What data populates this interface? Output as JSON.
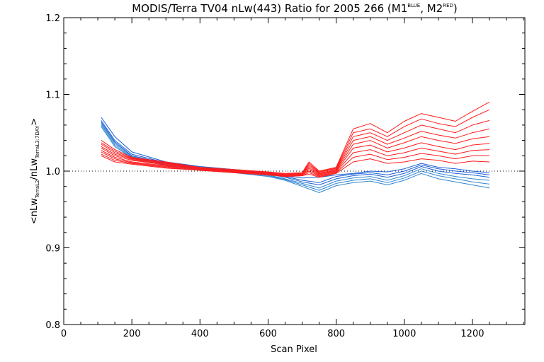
{
  "chart_data": {
    "type": "line",
    "title": {
      "main": "MODIS/Terra TV04 nLw(443) Ratio for 2005 266 (M1",
      "sup1": "BLUE",
      "mid": ", M2",
      "sup2": "RED",
      "end": ")"
    },
    "xlabel": "Scan Pixel",
    "ylabel": {
      "open": "<nLw",
      "sub1": "TerraL2",
      "slash": "/nLw",
      "sub2": "TerraL3:7DAY",
      "close": ">"
    },
    "xlim": [
      0,
      1354
    ],
    "ylim": [
      0.8,
      1.2
    ],
    "x_ticks": [
      "0",
      "200",
      "400",
      "600",
      "800",
      "1000",
      "1200"
    ],
    "y_ticks": [
      "0.8",
      "0.9",
      "1.0",
      "1.1",
      "1.2"
    ],
    "reference_line": {
      "y": 1.0,
      "style": "dotted"
    },
    "grid": false,
    "legend": "none",
    "colors": {
      "blue_series": "#1a5fd6",
      "blue_light": "#2f86d0",
      "red_series": "#ff1a1a"
    },
    "series": [
      {
        "group": "blue",
        "x": [
          110,
          150,
          200,
          300,
          400,
          500,
          600,
          650,
          700,
          750,
          800,
          850,
          900,
          950,
          1000,
          1050,
          1100,
          1150,
          1200,
          1250
        ],
        "y": [
          1.07,
          1.045,
          1.025,
          1.012,
          1.006,
          1.002,
          0.998,
          0.994,
          0.991,
          0.992,
          0.995,
          0.997,
          1.0,
          0.999,
          1.003,
          1.01,
          1.005,
          1.003,
          1.0,
          0.998
        ]
      },
      {
        "group": "blue",
        "x": [
          110,
          150,
          200,
          300,
          400,
          500,
          600,
          650,
          700,
          750,
          800,
          850,
          900,
          950,
          1000,
          1050,
          1100,
          1150,
          1200,
          1250
        ],
        "y": [
          1.066,
          1.04,
          1.022,
          1.011,
          1.005,
          1.001,
          0.997,
          0.993,
          0.988,
          0.985,
          0.993,
          0.996,
          0.998,
          0.995,
          1.0,
          1.008,
          1.003,
          1.0,
          0.998,
          0.995
        ]
      },
      {
        "group": "blue",
        "x": [
          110,
          150,
          200,
          300,
          400,
          500,
          600,
          650,
          700,
          750,
          800,
          850,
          900,
          950,
          1000,
          1050,
          1100,
          1150,
          1200,
          1250
        ],
        "y": [
          1.064,
          1.038,
          1.02,
          1.01,
          1.004,
          1.0,
          0.996,
          0.992,
          0.986,
          0.982,
          0.99,
          0.994,
          0.996,
          0.992,
          0.997,
          1.006,
          1.0,
          0.997,
          0.995,
          0.992
        ]
      },
      {
        "group": "blue",
        "x": [
          110,
          150,
          200,
          300,
          400,
          500,
          600,
          650,
          700,
          750,
          800,
          850,
          900,
          950,
          1000,
          1050,
          1100,
          1150,
          1200,
          1250
        ],
        "y": [
          1.062,
          1.036,
          1.019,
          1.009,
          1.003,
          1.0,
          0.995,
          0.99,
          0.984,
          0.978,
          0.987,
          0.991,
          0.993,
          0.988,
          0.994,
          1.003,
          0.997,
          0.993,
          0.99,
          0.988
        ]
      },
      {
        "group": "blue",
        "x": [
          110,
          150,
          200,
          300,
          400,
          500,
          600,
          650,
          700,
          750,
          800,
          850,
          900,
          950,
          1000,
          1050,
          1100,
          1150,
          1200,
          1250
        ],
        "y": [
          1.06,
          1.034,
          1.018,
          1.008,
          1.002,
          0.999,
          0.994,
          0.989,
          0.982,
          0.975,
          0.984,
          0.988,
          0.99,
          0.985,
          0.991,
          1.0,
          0.994,
          0.99,
          0.986,
          0.983
        ]
      },
      {
        "group": "blue",
        "x": [
          110,
          150,
          200,
          300,
          400,
          500,
          600,
          650,
          700,
          750,
          800,
          850,
          900,
          950,
          1000,
          1050,
          1100,
          1150,
          1200,
          1250
        ],
        "y": [
          1.058,
          1.032,
          1.017,
          1.007,
          1.001,
          0.998,
          0.993,
          0.988,
          0.98,
          0.972,
          0.981,
          0.985,
          0.987,
          0.982,
          0.988,
          0.997,
          0.99,
          0.986,
          0.982,
          0.978
        ]
      },
      {
        "group": "red",
        "x": [
          110,
          150,
          200,
          300,
          400,
          500,
          600,
          650,
          700,
          720,
          750,
          800,
          850,
          900,
          950,
          1000,
          1050,
          1100,
          1150,
          1200,
          1250
        ],
        "y": [
          1.04,
          1.028,
          1.018,
          1.012,
          1.005,
          1.002,
          0.999,
          0.997,
          0.998,
          1.012,
          1.0,
          1.005,
          1.055,
          1.062,
          1.05,
          1.065,
          1.075,
          1.07,
          1.065,
          1.078,
          1.09
        ]
      },
      {
        "group": "red",
        "x": [
          110,
          150,
          200,
          300,
          400,
          500,
          600,
          650,
          700,
          720,
          750,
          800,
          850,
          900,
          950,
          1000,
          1050,
          1100,
          1150,
          1200,
          1250
        ],
        "y": [
          1.037,
          1.026,
          1.017,
          1.011,
          1.004,
          1.001,
          0.998,
          0.996,
          0.997,
          1.01,
          0.999,
          1.004,
          1.05,
          1.055,
          1.045,
          1.058,
          1.068,
          1.062,
          1.058,
          1.07,
          1.08
        ]
      },
      {
        "group": "red",
        "x": [
          110,
          150,
          200,
          300,
          400,
          500,
          600,
          650,
          700,
          720,
          750,
          800,
          850,
          900,
          950,
          1000,
          1050,
          1100,
          1150,
          1200,
          1250
        ],
        "y": [
          1.035,
          1.024,
          1.016,
          1.01,
          1.004,
          1.001,
          0.998,
          0.996,
          0.997,
          1.008,
          0.998,
          1.003,
          1.045,
          1.05,
          1.04,
          1.05,
          1.06,
          1.055,
          1.05,
          1.06,
          1.066
        ]
      },
      {
        "group": "red",
        "x": [
          110,
          150,
          200,
          300,
          400,
          500,
          600,
          650,
          700,
          720,
          750,
          800,
          850,
          900,
          950,
          1000,
          1050,
          1100,
          1150,
          1200,
          1250
        ],
        "y": [
          1.032,
          1.022,
          1.015,
          1.009,
          1.003,
          1.0,
          0.997,
          0.995,
          0.996,
          1.006,
          0.997,
          1.002,
          1.04,
          1.045,
          1.035,
          1.043,
          1.052,
          1.047,
          1.043,
          1.05,
          1.055
        ]
      },
      {
        "group": "red",
        "x": [
          110,
          150,
          200,
          300,
          400,
          500,
          600,
          650,
          700,
          720,
          750,
          800,
          850,
          900,
          950,
          1000,
          1050,
          1100,
          1150,
          1200,
          1250
        ],
        "y": [
          1.03,
          1.02,
          1.014,
          1.008,
          1.003,
          1.0,
          0.997,
          0.995,
          0.996,
          1.004,
          0.996,
          1.001,
          1.035,
          1.04,
          1.03,
          1.037,
          1.045,
          1.04,
          1.036,
          1.042,
          1.045
        ]
      },
      {
        "group": "red",
        "x": [
          110,
          150,
          200,
          300,
          400,
          500,
          600,
          650,
          700,
          720,
          750,
          800,
          850,
          900,
          950,
          1000,
          1050,
          1100,
          1150,
          1200,
          1250
        ],
        "y": [
          1.027,
          1.018,
          1.012,
          1.007,
          1.002,
          0.999,
          0.996,
          0.994,
          0.995,
          1.002,
          0.995,
          1.0,
          1.03,
          1.034,
          1.025,
          1.03,
          1.037,
          1.032,
          1.028,
          1.034,
          1.036
        ]
      },
      {
        "group": "red",
        "x": [
          110,
          150,
          200,
          300,
          400,
          500,
          600,
          650,
          700,
          720,
          750,
          800,
          850,
          900,
          950,
          1000,
          1050,
          1100,
          1150,
          1200,
          1250
        ],
        "y": [
          1.025,
          1.016,
          1.011,
          1.006,
          1.002,
          0.999,
          0.996,
          0.994,
          0.995,
          1.0,
          0.994,
          0.999,
          1.024,
          1.028,
          1.02,
          1.024,
          1.03,
          1.026,
          1.022,
          1.027,
          1.028
        ]
      },
      {
        "group": "red",
        "x": [
          110,
          150,
          200,
          300,
          400,
          500,
          600,
          650,
          700,
          720,
          750,
          800,
          850,
          900,
          950,
          1000,
          1050,
          1100,
          1150,
          1200,
          1250
        ],
        "y": [
          1.022,
          1.014,
          1.01,
          1.005,
          1.001,
          0.998,
          0.995,
          0.993,
          0.994,
          0.998,
          0.993,
          0.998,
          1.018,
          1.022,
          1.015,
          1.018,
          1.023,
          1.02,
          1.016,
          1.02,
          1.02
        ]
      },
      {
        "group": "red",
        "x": [
          110,
          150,
          200,
          300,
          400,
          500,
          600,
          650,
          700,
          720,
          750,
          800,
          850,
          900,
          950,
          1000,
          1050,
          1100,
          1150,
          1200,
          1250
        ],
        "y": [
          1.02,
          1.012,
          1.009,
          1.004,
          1.001,
          0.998,
          0.995,
          0.993,
          0.994,
          0.996,
          0.992,
          0.997,
          1.012,
          1.016,
          1.01,
          1.012,
          1.016,
          1.014,
          1.01,
          1.013,
          1.012
        ]
      }
    ]
  }
}
